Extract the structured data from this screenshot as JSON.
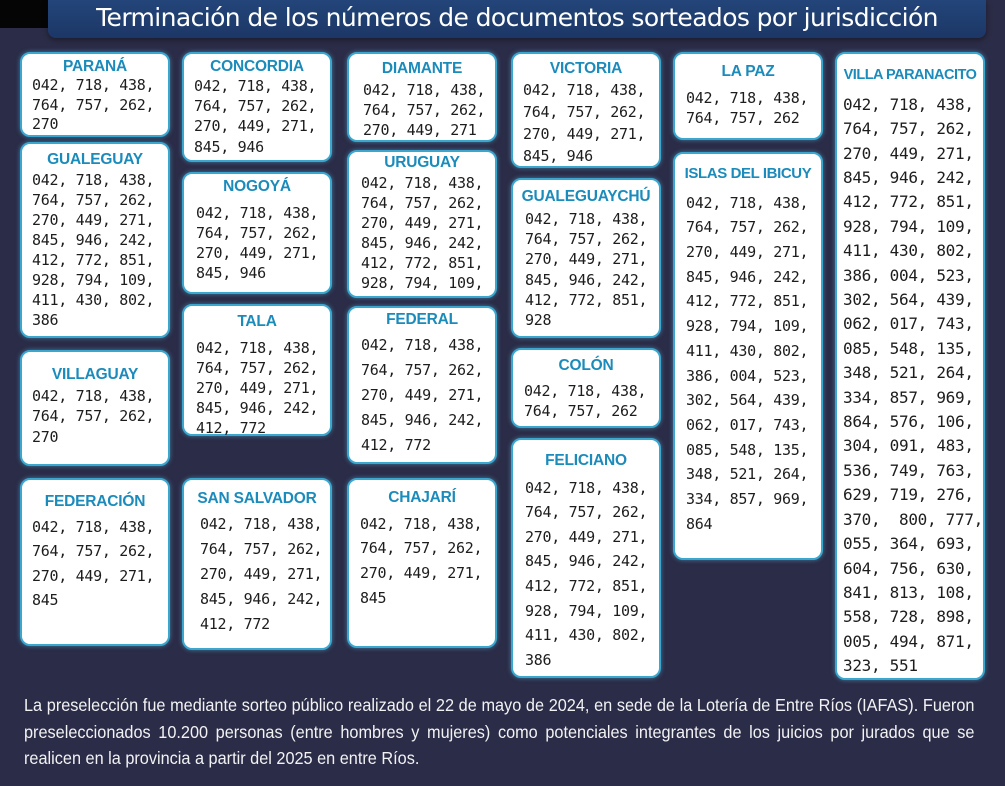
{
  "title": "Terminación de los números de documentos sorteados por jurisdicción",
  "colors": {
    "background": "#2b2c47",
    "title_bar": "#1f3d6f",
    "box_border": "#3aa7cf",
    "heading": "#1b8bbb"
  },
  "jurisdictions": [
    {
      "name": "PARANÁ",
      "numbers": "042, 718, 438,\n764, 757, 262,\n270"
    },
    {
      "name": "GUALEGUAY",
      "numbers": "042, 718, 438,\n764, 757, 262,\n270, 449, 271,\n845, 946, 242,\n412, 772, 851,\n928, 794, 109,\n411, 430, 802,\n386"
    },
    {
      "name": "VILLAGUAY",
      "numbers": "042, 718, 438,\n764, 757, 262,\n270"
    },
    {
      "name": "FEDERACIÓN",
      "numbers": "042, 718, 438,\n764, 757, 262,\n270, 449, 271,\n845"
    },
    {
      "name": "CONCORDIA",
      "numbers": "042, 718, 438,\n764, 757, 262,\n270, 449, 271,\n845, 946"
    },
    {
      "name": "NOGOYÁ",
      "numbers": "042, 718, 438,\n764, 757, 262,\n270, 449, 271,\n845, 946"
    },
    {
      "name": "TALA",
      "numbers": "042, 718, 438,\n764, 757, 262,\n270, 449, 271,\n845, 946, 242,\n412, 772"
    },
    {
      "name": "SAN SALVADOR",
      "numbers": "042, 718, 438,\n764, 757, 262,\n270, 449, 271,\n845, 946, 242,\n412, 772"
    },
    {
      "name": "DIAMANTE",
      "numbers": "042, 718, 438,\n764, 757, 262,\n270, 449, 271"
    },
    {
      "name": "URUGUAY",
      "numbers": "042, 718, 438,\n764, 757, 262,\n270, 449, 271,\n845, 946, 242,\n412, 772, 851,\n928, 794, 109,"
    },
    {
      "name": "FEDERAL",
      "numbers": "042, 718, 438,\n764, 757, 262,\n270, 449, 271,\n845, 946, 242,\n412, 772"
    },
    {
      "name": "CHAJARÍ",
      "numbers": "042, 718, 438,\n764, 757, 262,\n270, 449, 271,\n845"
    },
    {
      "name": "VICTORIA",
      "numbers": "042, 718, 438,\n764, 757, 262,\n270, 449, 271,\n845, 946"
    },
    {
      "name": "GUALEGUAYCHÚ",
      "numbers": "042, 718, 438,\n764, 757, 262,\n270, 449, 271,\n845, 946, 242,\n412, 772, 851,\n928"
    },
    {
      "name": "COLÓN",
      "numbers": "042, 718, 438,\n764, 757, 262"
    },
    {
      "name": "FELICIANO",
      "numbers": "042, 718, 438,\n764, 757, 262,\n270, 449, 271,\n845, 946, 242,\n412, 772, 851,\n928, 794, 109,\n411, 430, 802,\n386"
    },
    {
      "name": "LA PAZ",
      "numbers": "042, 718, 438,\n764, 757, 262"
    },
    {
      "name": "ISLAS DEL IBICUY",
      "numbers": "042, 718, 438,\n764, 757, 262,\n270, 449, 271,\n845, 946, 242,\n412, 772, 851,\n928, 794, 109,\n411, 430, 802,\n386, 004, 523,\n302, 564, 439,\n062, 017, 743,\n085, 548, 135,\n348, 521, 264,\n334, 857, 969,\n864"
    },
    {
      "name": "VILLA PARANACITO",
      "numbers": "042, 718, 438,\n764, 757, 262,\n270, 449, 271,\n845, 946, 242,\n412, 772, 851,\n928, 794, 109,\n411, 430, 802,\n386, 004, 523,\n302, 564, 439,\n062, 017, 743,\n085, 548, 135,\n348, 521, 264,\n334, 857, 969,\n864, 576, 106,\n304, 091, 483,\n536, 749, 763,\n629, 719, 276,\n370,  800, 777,\n055, 364, 693,\n604, 756, 630,\n841, 813, 108,\n558, 728, 898,\n005, 494, 871,\n323, 551"
    }
  ],
  "footer": "La preselección fue mediante sorteo público realizado el 22 de mayo de 2024, en sede de la Lotería de Entre Ríos (IAFAS). Fueron preseleccionados 10.200 personas (entre hombres y mujeres) como potenciales integrantes de los juicios por jurados que se realicen en la provincia a partir del 2025 en entre Ríos."
}
